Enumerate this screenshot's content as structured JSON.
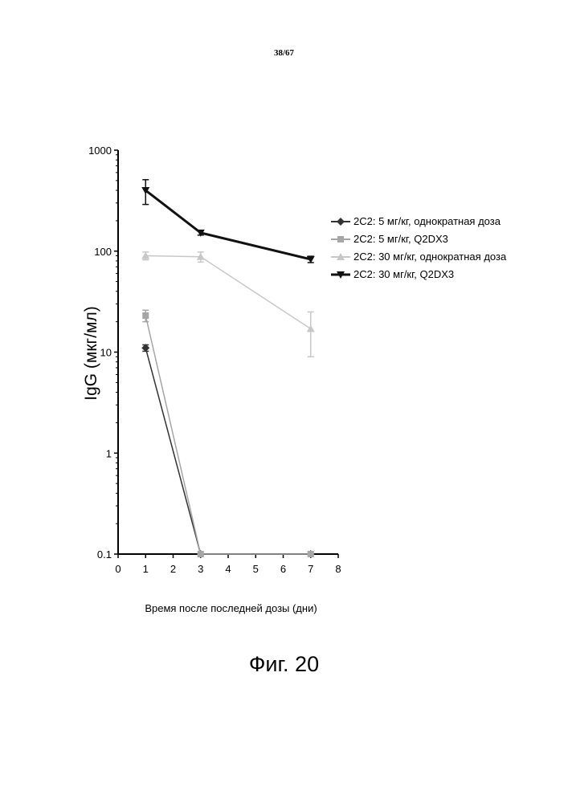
{
  "page_number": "38/67",
  "figure_caption": "Фиг. 20",
  "chart_data": {
    "type": "line",
    "title": "",
    "xlabel": "Время после последней дозы (дни)",
    "ylabel": "IgG (мкг/мл)",
    "xlim": [
      0,
      8
    ],
    "ylim": [
      0.1,
      1000
    ],
    "yscale": "log",
    "grid": false,
    "legend_position": "right",
    "x_ticks": [
      "0",
      "1",
      "2",
      "3",
      "4",
      "5",
      "6",
      "7",
      "8"
    ],
    "y_ticks": [
      "0.1",
      "1",
      "10",
      "100",
      "1000"
    ],
    "x": [
      1,
      3,
      7
    ],
    "series": [
      {
        "name": "2C2: 5 мг/кг, однократная доза",
        "marker": "diamond",
        "color": "#333333",
        "values": [
          11,
          0.1,
          0.1
        ],
        "error": [
          0.8,
          0,
          0
        ]
      },
      {
        "name": "2C2: 5 мг/кг, Q2DX3",
        "marker": "square",
        "color": "#a6a6a6",
        "values": [
          23,
          0.1,
          0.1
        ],
        "error": [
          3,
          0,
          0
        ]
      },
      {
        "name": "2C2: 30 мг/кг, однократная доза",
        "marker": "triangle-up",
        "color": "#c8c8c8",
        "values": [
          90,
          88,
          17
        ],
        "error": [
          8,
          10,
          8
        ]
      },
      {
        "name": "2C2: 30 мг/кг, Q2DX3",
        "marker": "triangle-down",
        "color": "#111111",
        "values": [
          400,
          152,
          83
        ],
        "error": [
          110,
          8,
          6
        ]
      }
    ]
  }
}
